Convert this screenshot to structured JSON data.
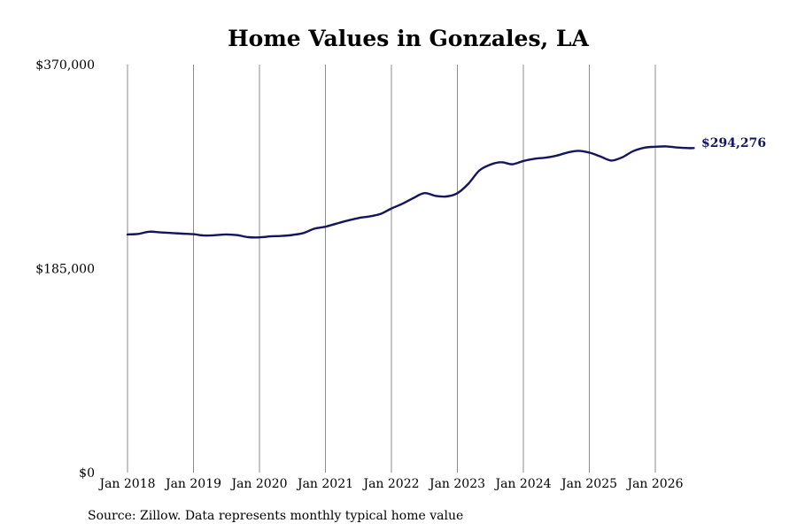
{
  "chart_data": {
    "type": "line",
    "title": "Home Values in Gonzales, LA",
    "xlabel": "",
    "ylabel": "",
    "ylim": [
      0,
      370000
    ],
    "y_ticks": [
      {
        "value": 0,
        "label": "$0"
      },
      {
        "value": 185000,
        "label": "$185,000"
      },
      {
        "value": 370000,
        "label": "$370,000"
      }
    ],
    "x_ticks": [
      {
        "date": "2018-01",
        "label": "Jan 2018"
      },
      {
        "date": "2019-01",
        "label": "Jan 2019"
      },
      {
        "date": "2020-01",
        "label": "Jan 2020"
      },
      {
        "date": "2021-01",
        "label": "Jan 2021"
      },
      {
        "date": "2022-01",
        "label": "Jan 2022"
      },
      {
        "date": "2023-01",
        "label": "Jan 2023"
      },
      {
        "date": "2024-01",
        "label": "Jan 2024"
      },
      {
        "date": "2025-01",
        "label": "Jan 2025"
      },
      {
        "date": "2026-01",
        "label": "Jan 2026"
      }
    ],
    "grid": {
      "vertical": true,
      "horizontal": false
    },
    "line_color": "#14145f",
    "end_label": "$294,276",
    "series": [
      {
        "x": [
          "2018-01",
          "2018-03",
          "2018-05",
          "2018-07",
          "2018-09",
          "2018-11",
          "2019-01",
          "2019-03",
          "2019-05",
          "2019-07",
          "2019-09",
          "2019-11",
          "2020-01",
          "2020-03",
          "2020-05",
          "2020-07",
          "2020-09",
          "2020-11",
          "2021-01",
          "2021-03",
          "2021-05",
          "2021-07",
          "2021-09",
          "2021-11",
          "2022-01",
          "2022-03",
          "2022-05",
          "2022-07",
          "2022-09",
          "2022-11",
          "2023-01",
          "2023-03",
          "2023-05",
          "2023-07",
          "2023-09",
          "2023-11",
          "2024-01",
          "2024-03",
          "2024-05",
          "2024-07",
          "2024-09",
          "2024-11",
          "2025-01",
          "2025-03",
          "2025-05",
          "2025-07",
          "2025-09",
          "2025-11",
          "2026-01",
          "2026-03",
          "2026-05",
          "2026-07",
          "2026-08"
        ],
        "y": [
          216000,
          216500,
          218500,
          217800,
          217300,
          216700,
          216200,
          215000,
          215300,
          216000,
          215300,
          213500,
          213300,
          214200,
          214600,
          215500,
          217300,
          221200,
          223000,
          225800,
          228500,
          230800,
          232300,
          234500,
          239500,
          243800,
          249000,
          253500,
          251000,
          250400,
          253400,
          262000,
          274000,
          279300,
          281500,
          279600,
          282600,
          284600,
          285600,
          287400,
          290200,
          291800,
          290200,
          286700,
          283000,
          286000,
          291600,
          294600,
          295500,
          295800,
          294800,
          294276,
          294276
        ]
      }
    ],
    "source": "Source: Zillow. Data represents monthly typical home value"
  }
}
